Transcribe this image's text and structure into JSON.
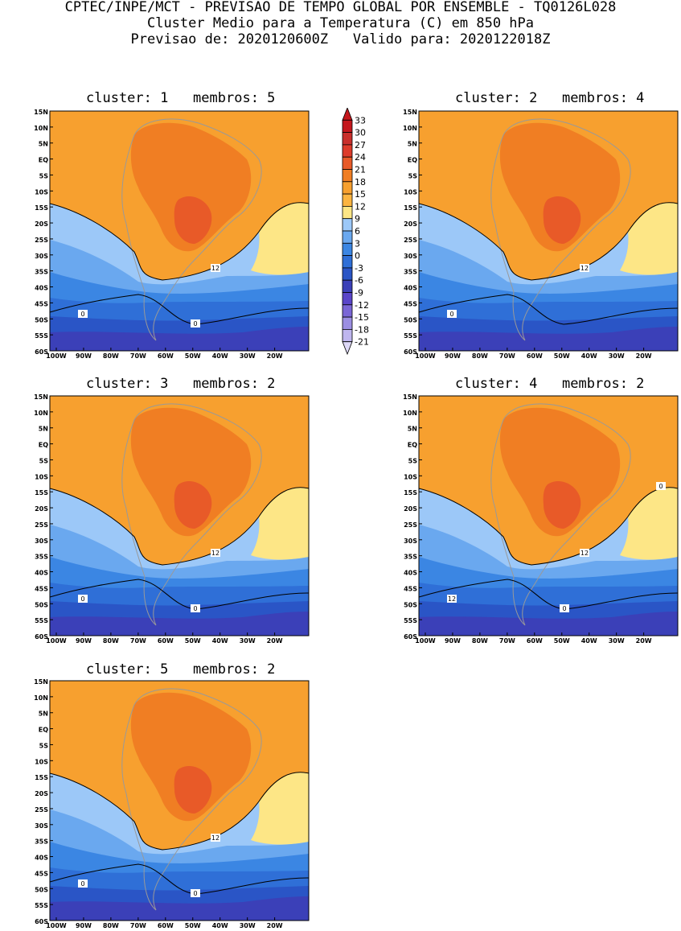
{
  "header": {
    "line1": "CPTEC/INPE/MCT - PREVISAO DE TEMPO GLOBAL POR ENSEMBLE - TQ0126L028",
    "line2": "Cluster Medio para a Temperatura (C) em 850 hPa",
    "line3": "Previsao de: 2020120600Z   Valido para: 2020122018Z"
  },
  "axes": {
    "lat_labels": [
      "15N",
      "10N",
      "5N",
      "EQ",
      "5S",
      "10S",
      "15S",
      "20S",
      "25S",
      "30S",
      "35S",
      "40S",
      "45S",
      "50S",
      "55S",
      "60S"
    ],
    "lon_labels": [
      "100W",
      "90W",
      "80W",
      "70W",
      "60W",
      "50W",
      "40W",
      "30W",
      "20W"
    ]
  },
  "colorbar": {
    "labels": [
      "33",
      "30",
      "27",
      "24",
      "21",
      "18",
      "15",
      "12",
      "9",
      "6",
      "3",
      "0",
      "-3",
      "-6",
      "-9",
      "-12",
      "-15",
      "-18",
      "-21"
    ],
    "colors": [
      "#c4161c",
      "#c92f2b",
      "#dd3b2a",
      "#e85a28",
      "#f07e23",
      "#f7a02f",
      "#fbb441",
      "#fde686",
      "#9cc8f8",
      "#6aa8ef",
      "#3b86e3",
      "#2f6fd7",
      "#2a55c6",
      "#3b40b8",
      "#5a45c9",
      "#7a66d6",
      "#9b8ee2",
      "#bfb6ef",
      "#ddd8f7"
    ]
  },
  "panels": [
    {
      "title": "cluster: 1   membros: 5",
      "contour_labels": [
        "12",
        "0",
        "0"
      ]
    },
    {
      "title": "cluster: 2   membros: 4",
      "contour_labels": [
        "12",
        "0"
      ]
    },
    {
      "title": "cluster: 3   membros: 2",
      "contour_labels": [
        "12",
        "0",
        "0"
      ]
    },
    {
      "title": "cluster: 4   membros: 2",
      "contour_labels": [
        "12",
        "12",
        "0",
        "0"
      ]
    },
    {
      "title": "cluster: 5   membros: 2",
      "contour_labels": [
        "12",
        "0",
        "0"
      ]
    }
  ]
}
